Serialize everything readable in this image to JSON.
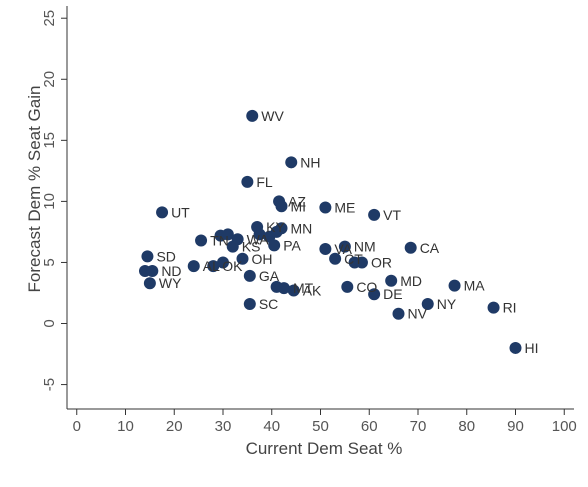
{
  "chart_data": {
    "type": "scatter",
    "title": "",
    "xlabel": "Current Dem Seat %",
    "ylabel": "Forecast Dem % Seat Gain",
    "xlim": [
      -2,
      102
    ],
    "ylim": [
      -7,
      26
    ],
    "xticks": [
      0,
      10,
      20,
      30,
      40,
      50,
      60,
      70,
      80,
      90,
      100
    ],
    "yticks": [
      -5,
      0,
      5,
      10,
      15,
      20,
      25
    ],
    "grid": false,
    "legend": "none",
    "colors": {
      "marker": "#1f3a66",
      "axis": "#333333",
      "text": "#555555",
      "background": "#ffffff"
    },
    "points": [
      {
        "label": "WV",
        "x": 36.0,
        "y": 17.0,
        "show_label": true
      },
      {
        "label": "NH",
        "x": 44.0,
        "y": 13.2,
        "show_label": true
      },
      {
        "label": "FL",
        "x": 35.0,
        "y": 11.6,
        "show_label": true
      },
      {
        "label": "AZ",
        "x": 41.5,
        "y": 10.0,
        "show_label": true
      },
      {
        "label": "MI",
        "x": 42.0,
        "y": 9.6,
        "show_label": true
      },
      {
        "label": "ME",
        "x": 51.0,
        "y": 9.5,
        "show_label": true
      },
      {
        "label": "VT",
        "x": 61.0,
        "y": 8.9,
        "show_label": true
      },
      {
        "label": "UT",
        "x": 17.5,
        "y": 9.1,
        "show_label": true
      },
      {
        "label": "KY",
        "x": 37.0,
        "y": 7.9,
        "show_label": true
      },
      {
        "label": "MN",
        "x": 42.0,
        "y": 7.8,
        "show_label": true
      },
      {
        "label": "",
        "x": 37.5,
        "y": 7.3,
        "show_label": false
      },
      {
        "label": "",
        "x": 39.5,
        "y": 7.1,
        "show_label": false
      },
      {
        "label": "",
        "x": 41.0,
        "y": 7.5,
        "show_label": false
      },
      {
        "label": "",
        "x": 29.5,
        "y": 7.2,
        "show_label": false
      },
      {
        "label": "",
        "x": 31.0,
        "y": 7.3,
        "show_label": false
      },
      {
        "label": "TN",
        "x": 25.5,
        "y": 6.8,
        "show_label": true
      },
      {
        "label": "WA",
        "x": 33.0,
        "y": 6.9,
        "show_label": true
      },
      {
        "label": "KS",
        "x": 32.0,
        "y": 6.3,
        "show_label": true
      },
      {
        "label": "PA",
        "x": 40.5,
        "y": 6.4,
        "show_label": true
      },
      {
        "label": "VA",
        "x": 51.0,
        "y": 6.1,
        "show_label": true
      },
      {
        "label": "NM",
        "x": 55.0,
        "y": 6.3,
        "show_label": true
      },
      {
        "label": "CA",
        "x": 68.5,
        "y": 6.2,
        "show_label": true
      },
      {
        "label": "SD",
        "x": 14.5,
        "y": 5.5,
        "show_label": true
      },
      {
        "label": "OH",
        "x": 34.0,
        "y": 5.3,
        "show_label": true
      },
      {
        "label": "CT",
        "x": 53.0,
        "y": 5.3,
        "show_label": true
      },
      {
        "label": "",
        "x": 57.0,
        "y": 5.0,
        "show_label": false
      },
      {
        "label": "OR",
        "x": 58.5,
        "y": 5.0,
        "show_label": true
      },
      {
        "label": "AL",
        "x": 24.0,
        "y": 4.7,
        "show_label": true
      },
      {
        "label": "OK",
        "x": 28.0,
        "y": 4.7,
        "show_label": true
      },
      {
        "label": "",
        "x": 30.0,
        "y": 5.0,
        "show_label": false
      },
      {
        "label": "",
        "x": 14.0,
        "y": 4.3,
        "show_label": false
      },
      {
        "label": "ND",
        "x": 15.5,
        "y": 4.3,
        "show_label": true
      },
      {
        "label": "GA",
        "x": 35.5,
        "y": 3.9,
        "show_label": true
      },
      {
        "label": "MD",
        "x": 64.5,
        "y": 3.5,
        "show_label": true
      },
      {
        "label": "WY",
        "x": 15.0,
        "y": 3.3,
        "show_label": true
      },
      {
        "label": "MA",
        "x": 77.5,
        "y": 3.1,
        "show_label": true
      },
      {
        "label": "",
        "x": 41.0,
        "y": 3.0,
        "show_label": false
      },
      {
        "label": "MT",
        "x": 42.5,
        "y": 2.9,
        "show_label": true
      },
      {
        "label": "AK",
        "x": 44.5,
        "y": 2.7,
        "show_label": true
      },
      {
        "label": "CO",
        "x": 55.5,
        "y": 3.0,
        "show_label": true
      },
      {
        "label": "DE",
        "x": 61.0,
        "y": 2.4,
        "show_label": true
      },
      {
        "label": "SC",
        "x": 35.5,
        "y": 1.6,
        "show_label": true
      },
      {
        "label": "NY",
        "x": 72.0,
        "y": 1.6,
        "show_label": true
      },
      {
        "label": "RI",
        "x": 85.5,
        "y": 1.3,
        "show_label": true
      },
      {
        "label": "NV",
        "x": 66.0,
        "y": 0.8,
        "show_label": true
      },
      {
        "label": "HI",
        "x": 90.0,
        "y": -2.0,
        "show_label": true
      }
    ]
  }
}
